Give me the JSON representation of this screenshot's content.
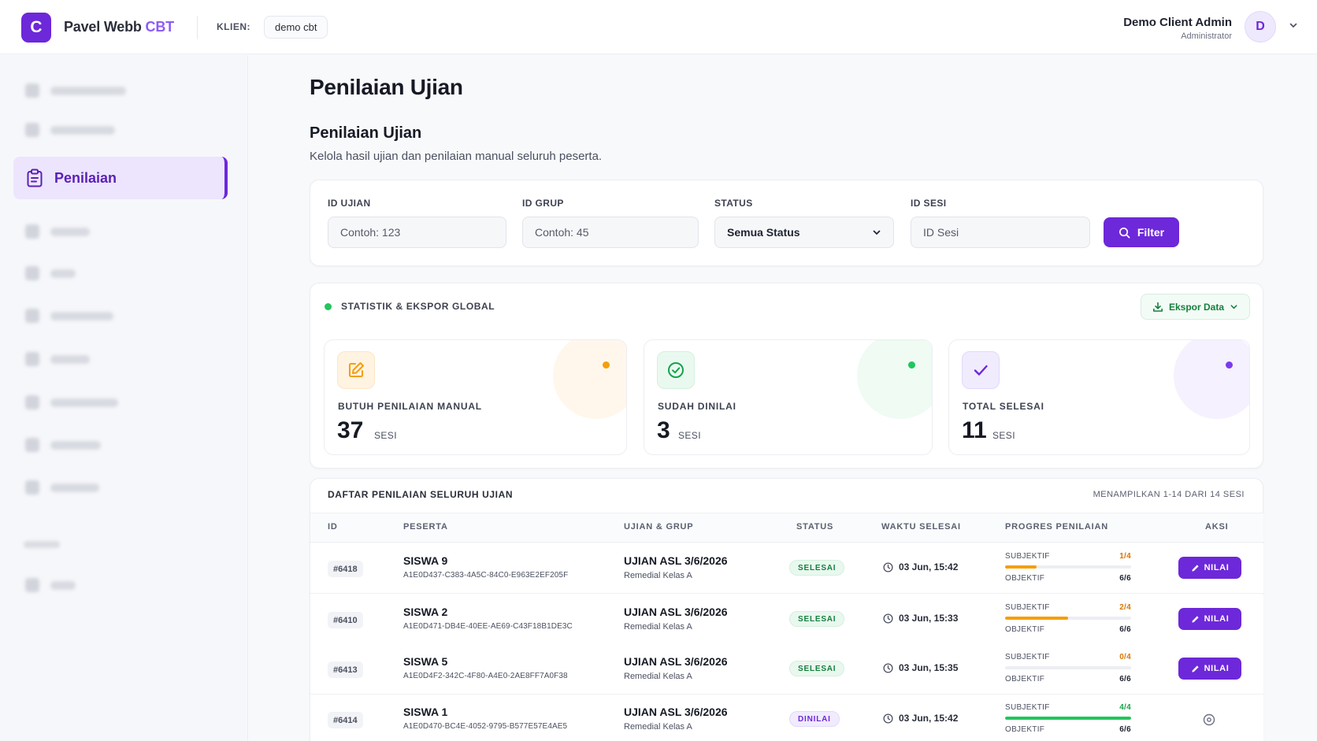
{
  "header": {
    "logo_letter": "C",
    "brand_main": "Pavel Webb",
    "brand_accent": "CBT",
    "klien_label": "KLIEN:",
    "klien_value": "demo cbt",
    "user_name": "Demo Client Admin",
    "user_role": "Administrator",
    "avatar_letter": "D"
  },
  "sidebar": {
    "active_item": {
      "label": "Penilaian",
      "icon": "clipboard-icon"
    }
  },
  "page": {
    "title": "Penilaian Ujian",
    "section_title": "Penilaian Ujian",
    "section_subtitle": "Kelola hasil ujian dan penilaian manual seluruh peserta."
  },
  "filters": {
    "id_ujian": {
      "label": "ID UJIAN",
      "placeholder": "Contoh: 123"
    },
    "id_grup": {
      "label": "ID GRUP",
      "placeholder": "Contoh: 45"
    },
    "status": {
      "label": "STATUS",
      "value": "Semua Status"
    },
    "id_sesi": {
      "label": "ID SESI",
      "placeholder": "ID Sesi"
    },
    "filter_button": "Filter"
  },
  "stats": {
    "heading": "STATISTIK & EKSPOR GLOBAL",
    "export_button": "Ekspor Data",
    "cards": [
      {
        "label": "BUTUH PENILAIAN MANUAL",
        "value": "37",
        "unit": "SESI",
        "icon": "edit-icon",
        "color": "#f59e0b"
      },
      {
        "label": "SUDAH DINILAI",
        "value": "3",
        "unit": "SESI",
        "icon": "check-circle-icon",
        "color": "#22c55e"
      },
      {
        "label": "TOTAL SELESAI",
        "value": "11",
        "unit": "SESI",
        "icon": "check-icon",
        "color": "#7c3aed"
      }
    ]
  },
  "table": {
    "title": "DAFTAR PENILAIAN SELURUH UJIAN",
    "count_text": "MENAMPILKAN 1-14 DARI 14 SESI",
    "columns": [
      "ID",
      "PESERTA",
      "UJIAN & GRUP",
      "STATUS",
      "WAKTU SELESAI",
      "PROGRES PENILAIAN",
      "AKSI"
    ],
    "subjektif_label": "SUBJEKTIF",
    "objektif_label": "OBJEKTIF",
    "action_label": "NILAI",
    "rows": [
      {
        "id": "#6418",
        "name": "SISWA 9",
        "uuid": "A1E0D437-C383-4A5C-84C0-E963E2EF205F",
        "exam": "UJIAN ASL 3/6/2026",
        "group": "Remedial Kelas A",
        "status": "SELESAI",
        "time": "03 Jun, 15:42",
        "subjektif": "1/4",
        "subjektif_fraction": 0.25,
        "objektif": "6/6",
        "action": "button"
      },
      {
        "id": "#6410",
        "name": "SISWA 2",
        "uuid": "A1E0D471-DB4E-40EE-AE69-C43F18B1DE3C",
        "exam": "UJIAN ASL 3/6/2026",
        "group": "Remedial Kelas A",
        "status": "SELESAI",
        "time": "03 Jun, 15:33",
        "subjektif": "2/4",
        "subjektif_fraction": 0.5,
        "objektif": "6/6",
        "action": "button"
      },
      {
        "id": "#6413",
        "name": "SISWA 5",
        "uuid": "A1E0D4F2-342C-4F80-A4E0-2AE8FF7A0F38",
        "exam": "UJIAN ASL 3/6/2026",
        "group": "Remedial Kelas A",
        "status": "SELESAI",
        "time": "03 Jun, 15:35",
        "subjektif": "0/4",
        "subjektif_fraction": 0,
        "objektif": "6/6",
        "action": "button"
      },
      {
        "id": "#6414",
        "name": "SISWA 1",
        "uuid": "A1E0D470-BC4E-4052-9795-B577E57E4AE5",
        "exam": "UJIAN ASL 3/6/2026",
        "group": "Remedial Kelas A",
        "status": "DINILAI",
        "time": "03 Jun, 15:42",
        "subjektif": "4/4",
        "subjektif_fraction": 1,
        "objektif": "6/6",
        "action": "view"
      }
    ]
  },
  "colors": {
    "accent": "#6d28d9",
    "success": "#22c55e",
    "warning": "#f59e0b"
  }
}
